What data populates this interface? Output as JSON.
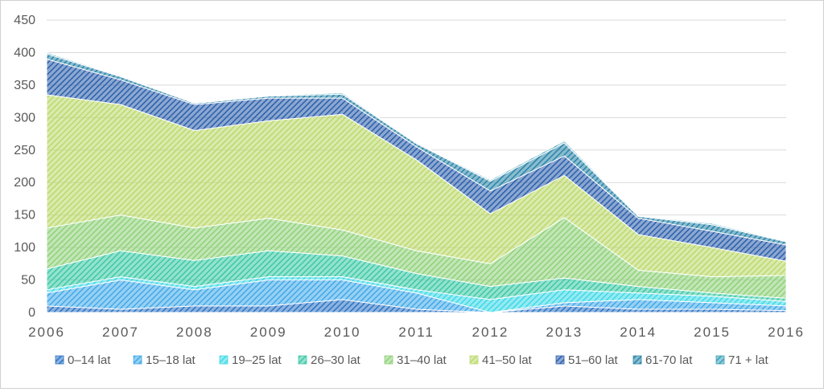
{
  "chart_data": {
    "type": "area",
    "stacked": true,
    "title": "",
    "xlabel": "",
    "ylabel": "",
    "ylim": [
      0,
      450
    ],
    "y_ticks": [
      "0",
      "50",
      "100",
      "150",
      "200",
      "250",
      "300",
      "350",
      "400",
      "450"
    ],
    "grid": true,
    "legend_position": "bottom",
    "x": [
      "2006",
      "2007",
      "2008",
      "2009",
      "2010",
      "2011",
      "2012",
      "2013",
      "2014",
      "2015",
      "2016"
    ],
    "series": [
      {
        "name": "0–14 lat",
        "color": "#2e74c4",
        "values": [
          10,
          5,
          10,
          10,
          20,
          5,
          0,
          10,
          5,
          5,
          3
        ]
      },
      {
        "name": "15–18 lat",
        "color": "#41a9e8",
        "values": [
          20,
          45,
          25,
          40,
          30,
          25,
          0,
          5,
          15,
          10,
          7
        ]
      },
      {
        "name": "19–25 lat",
        "color": "#3dd9e6",
        "values": [
          5,
          5,
          5,
          5,
          5,
          5,
          20,
          20,
          10,
          10,
          7
        ]
      },
      {
        "name": "26–30 lat",
        "color": "#3cc9a6",
        "values": [
          32,
          40,
          40,
          40,
          32,
          25,
          20,
          18,
          10,
          5,
          5
        ]
      },
      {
        "name": "31–40 lat",
        "color": "#8fd17a",
        "values": [
          63,
          55,
          50,
          50,
          40,
          35,
          35,
          93,
          25,
          25,
          35
        ]
      },
      {
        "name": "41–50 lat",
        "color": "#bcd96b",
        "values": [
          205,
          170,
          150,
          150,
          178,
          140,
          77,
          65,
          55,
          45,
          22
        ]
      },
      {
        "name": "51–60 lat",
        "color": "#2b5faa",
        "values": [
          55,
          38,
          40,
          35,
          25,
          20,
          35,
          30,
          25,
          25,
          25
        ]
      },
      {
        "name": "61-70 lat",
        "color": "#2a84a8",
        "values": [
          8,
          5,
          2,
          3,
          6,
          5,
          15,
          20,
          3,
          10,
          5
        ]
      },
      {
        "name": "71 + lat",
        "color": "#3aa0b8",
        "values": [
          2,
          1,
          1,
          1,
          2,
          1,
          2,
          3,
          1,
          2,
          1
        ]
      }
    ]
  }
}
